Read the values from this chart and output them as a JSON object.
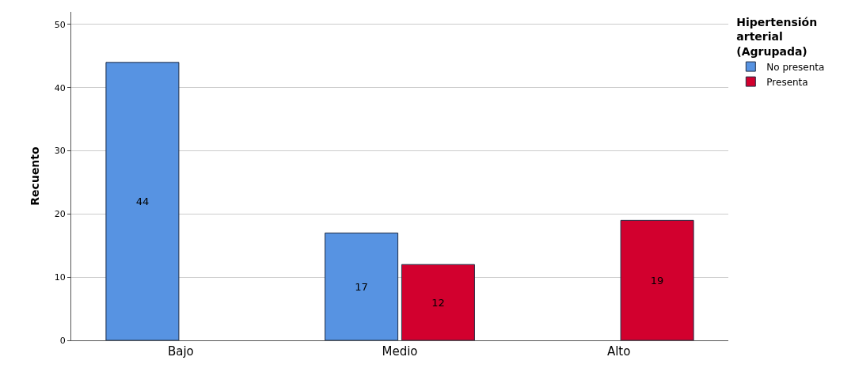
{
  "chart_data": {
    "type": "bar",
    "ylabel": "Recuento",
    "legend_title": "Hipertensión arterial (Agrupada)",
    "categories": [
      "Bajo",
      "Medio",
      "Alto"
    ],
    "series": [
      {
        "name": "No presenta",
        "color": "#5793e2",
        "values": [
          44,
          17,
          null
        ]
      },
      {
        "name": "Presenta",
        "color": "#d2002e",
        "values": [
          null,
          12,
          19
        ]
      }
    ],
    "ylim": [
      0,
      52
    ],
    "yticks": [
      0,
      10,
      20,
      30,
      40,
      50
    ],
    "grid": "y",
    "legend": "top right",
    "data_labels": true
  }
}
